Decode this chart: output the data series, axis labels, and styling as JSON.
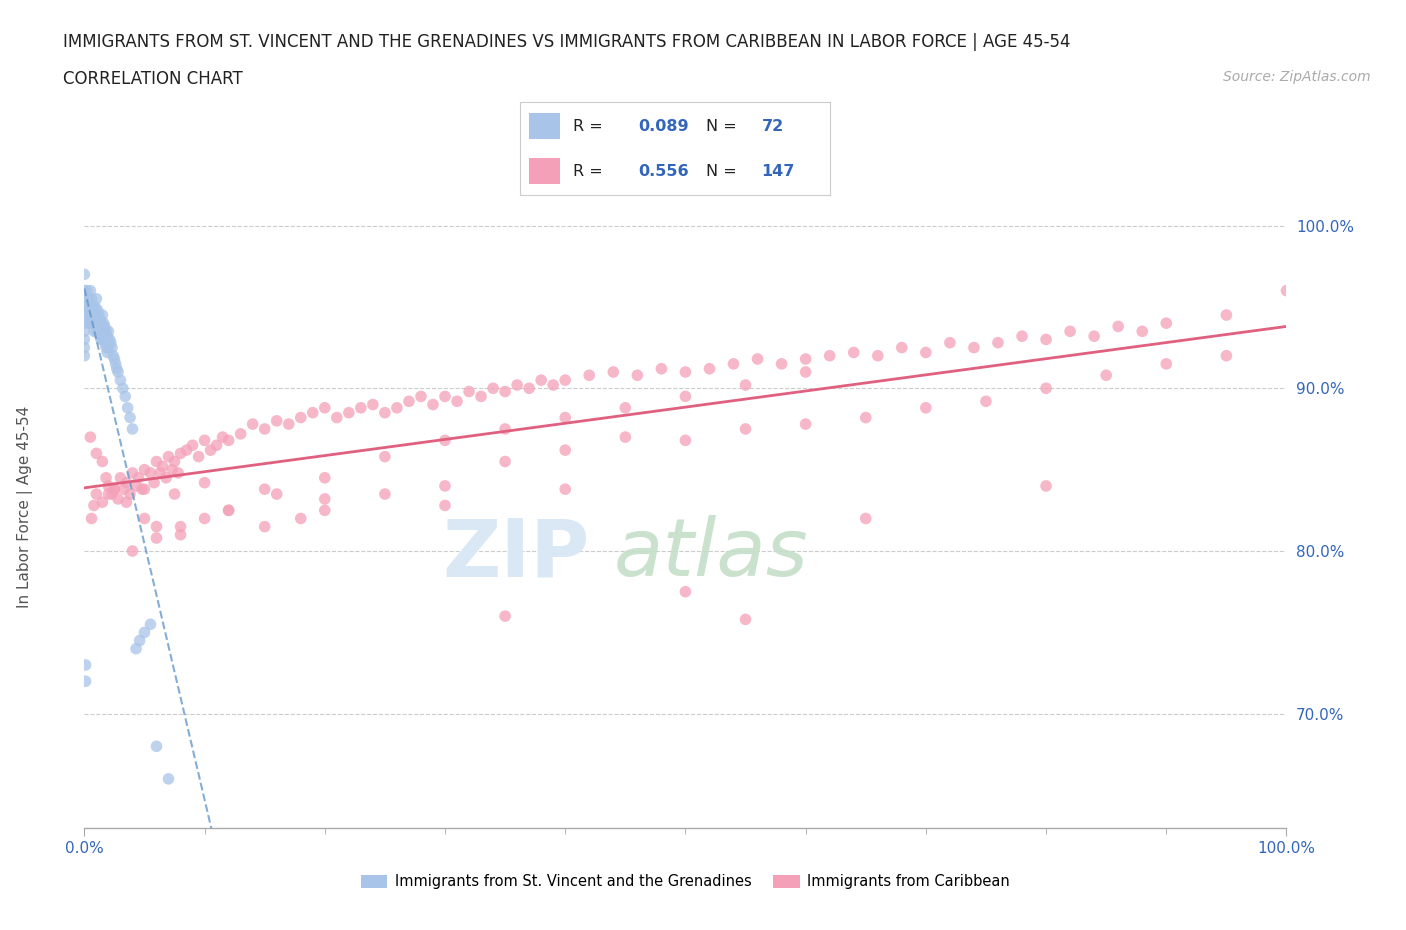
{
  "title_line1": "IMMIGRANTS FROM ST. VINCENT AND THE GRENADINES VS IMMIGRANTS FROM CARIBBEAN IN LABOR FORCE | AGE 45-54",
  "title_line2": "CORRELATION CHART",
  "source_text": "Source: ZipAtlas.com",
  "ylabel": "In Labor Force | Age 45-54",
  "xlim": [
    0.0,
    1.0
  ],
  "ylim": [
    0.63,
    1.03
  ],
  "yticks": [
    0.7,
    0.8,
    0.9,
    1.0
  ],
  "ytick_labels": [
    "70.0%",
    "80.0%",
    "90.0%",
    "100.0%"
  ],
  "blue_color": "#a8c4e8",
  "pink_color": "#f4a0b8",
  "blue_line_color": "#6699cc",
  "pink_line_color": "#e06080",
  "legend_blue_label": "Immigrants from St. Vincent and the Grenadines",
  "legend_pink_label": "Immigrants from Caribbean",
  "blue_R": 0.089,
  "blue_N": 72,
  "pink_R": 0.556,
  "pink_N": 147,
  "blue_scatter_x": [
    0.0,
    0.0,
    0.0,
    0.0,
    0.0,
    0.0,
    0.0,
    0.0,
    0.0,
    0.0,
    0.002,
    0.002,
    0.003,
    0.003,
    0.004,
    0.004,
    0.005,
    0.005,
    0.005,
    0.006,
    0.006,
    0.007,
    0.007,
    0.008,
    0.008,
    0.009,
    0.009,
    0.01,
    0.01,
    0.01,
    0.011,
    0.011,
    0.012,
    0.012,
    0.013,
    0.013,
    0.014,
    0.014,
    0.015,
    0.015,
    0.016,
    0.016,
    0.017,
    0.017,
    0.018,
    0.018,
    0.019,
    0.019,
    0.02,
    0.02,
    0.021,
    0.022,
    0.023,
    0.024,
    0.025,
    0.026,
    0.027,
    0.028,
    0.03,
    0.032,
    0.034,
    0.036,
    0.038,
    0.04,
    0.043,
    0.046,
    0.05,
    0.055,
    0.06,
    0.07,
    0.001,
    0.001
  ],
  "blue_scatter_y": [
    0.97,
    0.96,
    0.955,
    0.95,
    0.945,
    0.94,
    0.935,
    0.93,
    0.925,
    0.92,
    0.96,
    0.95,
    0.955,
    0.945,
    0.95,
    0.94,
    0.96,
    0.95,
    0.94,
    0.955,
    0.945,
    0.95,
    0.94,
    0.945,
    0.935,
    0.95,
    0.94,
    0.955,
    0.945,
    0.935,
    0.948,
    0.938,
    0.945,
    0.935,
    0.942,
    0.932,
    0.94,
    0.93,
    0.945,
    0.935,
    0.94,
    0.93,
    0.938,
    0.928,
    0.935,
    0.925,
    0.932,
    0.922,
    0.935,
    0.925,
    0.93,
    0.928,
    0.925,
    0.92,
    0.918,
    0.915,
    0.912,
    0.91,
    0.905,
    0.9,
    0.895,
    0.888,
    0.882,
    0.875,
    0.74,
    0.745,
    0.75,
    0.755,
    0.68,
    0.66,
    0.73,
    0.72
  ],
  "pink_scatter_x": [
    0.005,
    0.01,
    0.015,
    0.018,
    0.02,
    0.023,
    0.025,
    0.028,
    0.03,
    0.033,
    0.035,
    0.038,
    0.04,
    0.043,
    0.045,
    0.048,
    0.05,
    0.055,
    0.058,
    0.06,
    0.063,
    0.065,
    0.068,
    0.07,
    0.073,
    0.075,
    0.078,
    0.08,
    0.085,
    0.09,
    0.095,
    0.1,
    0.105,
    0.11,
    0.115,
    0.12,
    0.13,
    0.14,
    0.15,
    0.16,
    0.17,
    0.18,
    0.19,
    0.2,
    0.21,
    0.22,
    0.23,
    0.24,
    0.25,
    0.26,
    0.27,
    0.28,
    0.29,
    0.3,
    0.31,
    0.32,
    0.33,
    0.34,
    0.35,
    0.36,
    0.37,
    0.38,
    0.39,
    0.4,
    0.42,
    0.44,
    0.46,
    0.48,
    0.5,
    0.52,
    0.54,
    0.56,
    0.58,
    0.6,
    0.62,
    0.64,
    0.66,
    0.68,
    0.7,
    0.72,
    0.74,
    0.76,
    0.78,
    0.8,
    0.82,
    0.84,
    0.86,
    0.88,
    0.9,
    0.95,
    1.0,
    0.05,
    0.06,
    0.08,
    0.1,
    0.12,
    0.15,
    0.18,
    0.2,
    0.25,
    0.3,
    0.35,
    0.4,
    0.45,
    0.5,
    0.55,
    0.6,
    0.65,
    0.7,
    0.75,
    0.8,
    0.85,
    0.9,
    0.95,
    0.04,
    0.06,
    0.08,
    0.12,
    0.16,
    0.2,
    0.25,
    0.3,
    0.35,
    0.4,
    0.45,
    0.5,
    0.55,
    0.6,
    0.35,
    0.5,
    0.65,
    0.8,
    0.55,
    0.4,
    0.3,
    0.2,
    0.15,
    0.1,
    0.075,
    0.05,
    0.035,
    0.025,
    0.02,
    0.015,
    0.01,
    0.008,
    0.006
  ],
  "pink_scatter_y": [
    0.87,
    0.86,
    0.855,
    0.845,
    0.84,
    0.835,
    0.838,
    0.832,
    0.845,
    0.838,
    0.842,
    0.835,
    0.848,
    0.84,
    0.845,
    0.838,
    0.85,
    0.848,
    0.842,
    0.855,
    0.848,
    0.852,
    0.845,
    0.858,
    0.85,
    0.855,
    0.848,
    0.86,
    0.862,
    0.865,
    0.858,
    0.868,
    0.862,
    0.865,
    0.87,
    0.868,
    0.872,
    0.878,
    0.875,
    0.88,
    0.878,
    0.882,
    0.885,
    0.888,
    0.882,
    0.885,
    0.888,
    0.89,
    0.885,
    0.888,
    0.892,
    0.895,
    0.89,
    0.895,
    0.892,
    0.898,
    0.895,
    0.9,
    0.898,
    0.902,
    0.9,
    0.905,
    0.902,
    0.905,
    0.908,
    0.91,
    0.908,
    0.912,
    0.91,
    0.912,
    0.915,
    0.918,
    0.915,
    0.918,
    0.92,
    0.922,
    0.92,
    0.925,
    0.922,
    0.928,
    0.925,
    0.928,
    0.932,
    0.93,
    0.935,
    0.932,
    0.938,
    0.935,
    0.94,
    0.945,
    0.96,
    0.82,
    0.815,
    0.81,
    0.82,
    0.825,
    0.815,
    0.82,
    0.825,
    0.835,
    0.84,
    0.855,
    0.862,
    0.87,
    0.868,
    0.875,
    0.878,
    0.882,
    0.888,
    0.892,
    0.9,
    0.908,
    0.915,
    0.92,
    0.8,
    0.808,
    0.815,
    0.825,
    0.835,
    0.845,
    0.858,
    0.868,
    0.875,
    0.882,
    0.888,
    0.895,
    0.902,
    0.91,
    0.76,
    0.775,
    0.82,
    0.84,
    0.758,
    0.838,
    0.828,
    0.832,
    0.838,
    0.842,
    0.835,
    0.838,
    0.83,
    0.838,
    0.835,
    0.83,
    0.835,
    0.828,
    0.82
  ]
}
